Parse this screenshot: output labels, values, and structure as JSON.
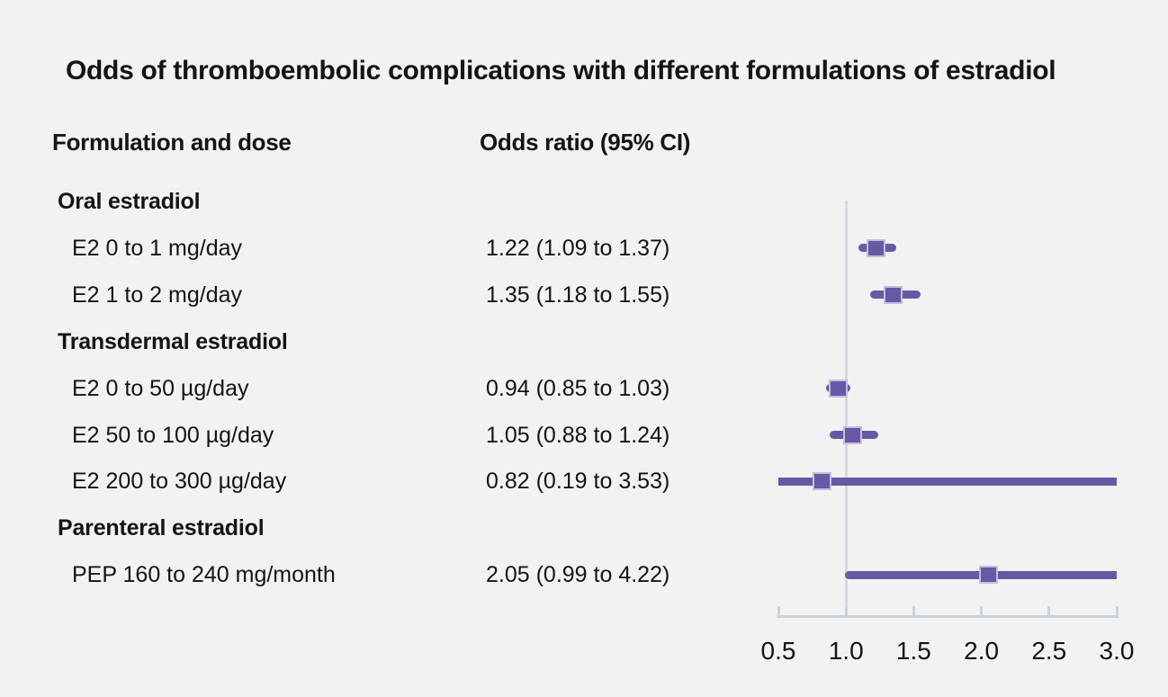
{
  "figure": {
    "title": "Odds of thromboembolic complications with different formulations of estradiol",
    "col_formulation": "Formulation and dose",
    "col_odds_ratio": "Odds ratio (95% CI)"
  },
  "colors": {
    "background": "#f2f2f2",
    "text": "#141414",
    "ci_line": "#6959a4",
    "marker_fill": "#6959a4",
    "marker_border": "#c5bcdf",
    "reference_line": "#d5d8e0",
    "axis": "#ccd2da"
  },
  "chart_data": {
    "type": "forest",
    "title": "Odds of thromboembolic complications with different formulations of estradiol",
    "columns": [
      "Formulation and dose",
      "Odds ratio (95% CI)"
    ],
    "xlabel": "Odds ratio",
    "xmin": 0.5,
    "xmax": 3.0,
    "tick_values": [
      0.5,
      1.0,
      1.5,
      2.0,
      2.5,
      3.0
    ],
    "tick_labels": [
      "0.5",
      "1.0",
      "1.5",
      "2.0",
      "2.5",
      "3.0"
    ],
    "reference_value": 1.0,
    "grid": false,
    "legend": false,
    "rows": [
      {
        "kind": "group",
        "label": "Oral estradiol"
      },
      {
        "kind": "item",
        "label": "E2 0 to 1 mg/day",
        "value_text": "1.22 (1.09 to 1.37)",
        "or": 1.22,
        "ci_low": 1.09,
        "ci_high": 1.37
      },
      {
        "kind": "item",
        "label": "E2 1 to 2 mg/day",
        "value_text": "1.35 (1.18 to 1.55)",
        "or": 1.35,
        "ci_low": 1.18,
        "ci_high": 1.55
      },
      {
        "kind": "group",
        "label": "Transdermal estradiol"
      },
      {
        "kind": "item",
        "label": "E2 0 to 50 µg/day",
        "value_text": "0.94 (0.85 to 1.03)",
        "or": 0.94,
        "ci_low": 0.85,
        "ci_high": 1.03
      },
      {
        "kind": "item",
        "label": "E2 50 to 100 µg/day",
        "value_text": "1.05 (0.88 to 1.24)",
        "or": 1.05,
        "ci_low": 0.88,
        "ci_high": 1.24
      },
      {
        "kind": "item",
        "label": "E2 200 to 300 µg/day",
        "value_text": "0.82 (0.19 to 3.53)",
        "or": 0.82,
        "ci_low": 0.19,
        "ci_high": 3.53
      },
      {
        "kind": "group",
        "label": "Parenteral estradiol"
      },
      {
        "kind": "item",
        "label": "PEP 160 to 240 mg/month",
        "value_text": "2.05 (0.99 to 4.22)",
        "or": 2.05,
        "ci_low": 0.99,
        "ci_high": 4.22
      }
    ]
  }
}
